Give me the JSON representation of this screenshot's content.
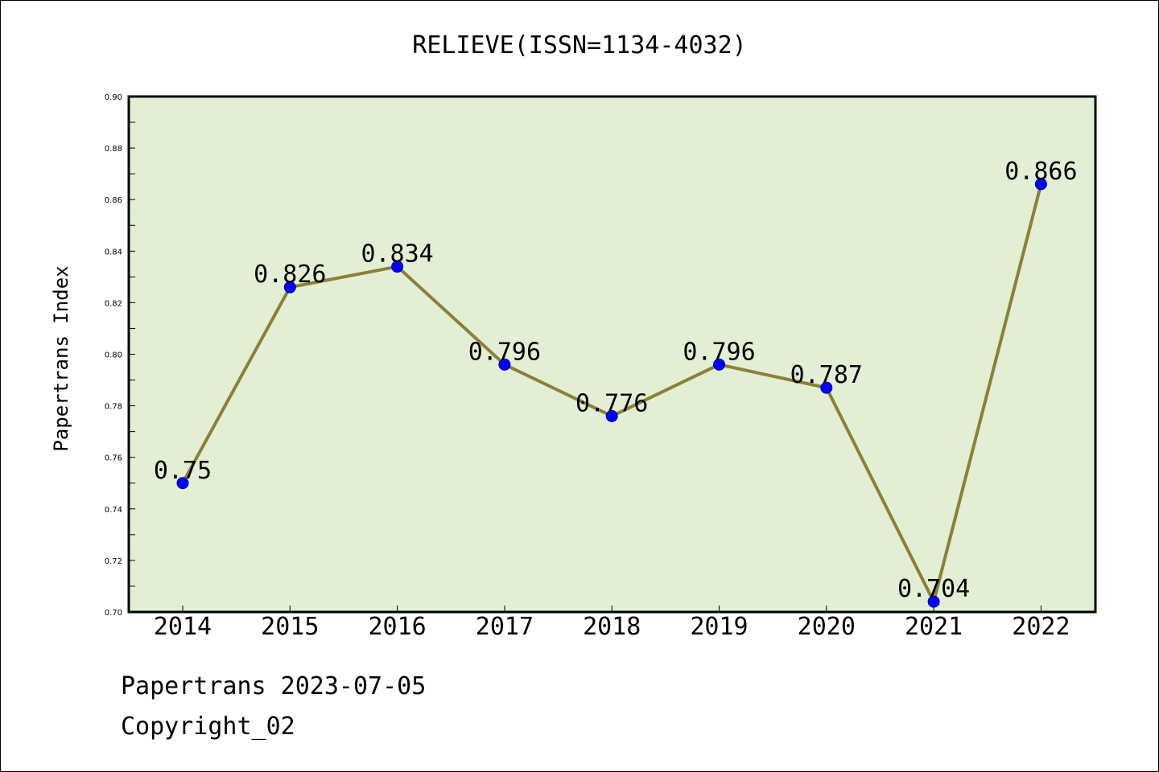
{
  "chart_data": {
    "type": "line",
    "title": "RELIEVE(ISSN=1134-4032)",
    "xlabel": "",
    "ylabel": "Papertrans Index",
    "categories": [
      "2014",
      "2015",
      "2016",
      "2017",
      "2018",
      "2019",
      "2020",
      "2021",
      "2022"
    ],
    "values": [
      0.75,
      0.826,
      0.834,
      0.796,
      0.776,
      0.796,
      0.787,
      0.704,
      0.866
    ],
    "value_labels": [
      "0.75",
      "0.826",
      "0.834",
      "0.796",
      "0.776",
      "0.796",
      "0.787",
      "0.704",
      "0.866"
    ],
    "ylim": [
      0.7,
      0.9
    ],
    "yticks": [
      "0.70",
      "0.72",
      "0.74",
      "0.76",
      "0.78",
      "0.80",
      "0.82",
      "0.84",
      "0.86",
      "0.88",
      "0.90"
    ],
    "grid": false,
    "colors": {
      "plot_background": "#e2efd5",
      "line": "#8b8036",
      "marker": "#0000ff"
    }
  },
  "footer": {
    "line1": "Papertrans 2023-07-05",
    "line2": "Copyright_02"
  }
}
